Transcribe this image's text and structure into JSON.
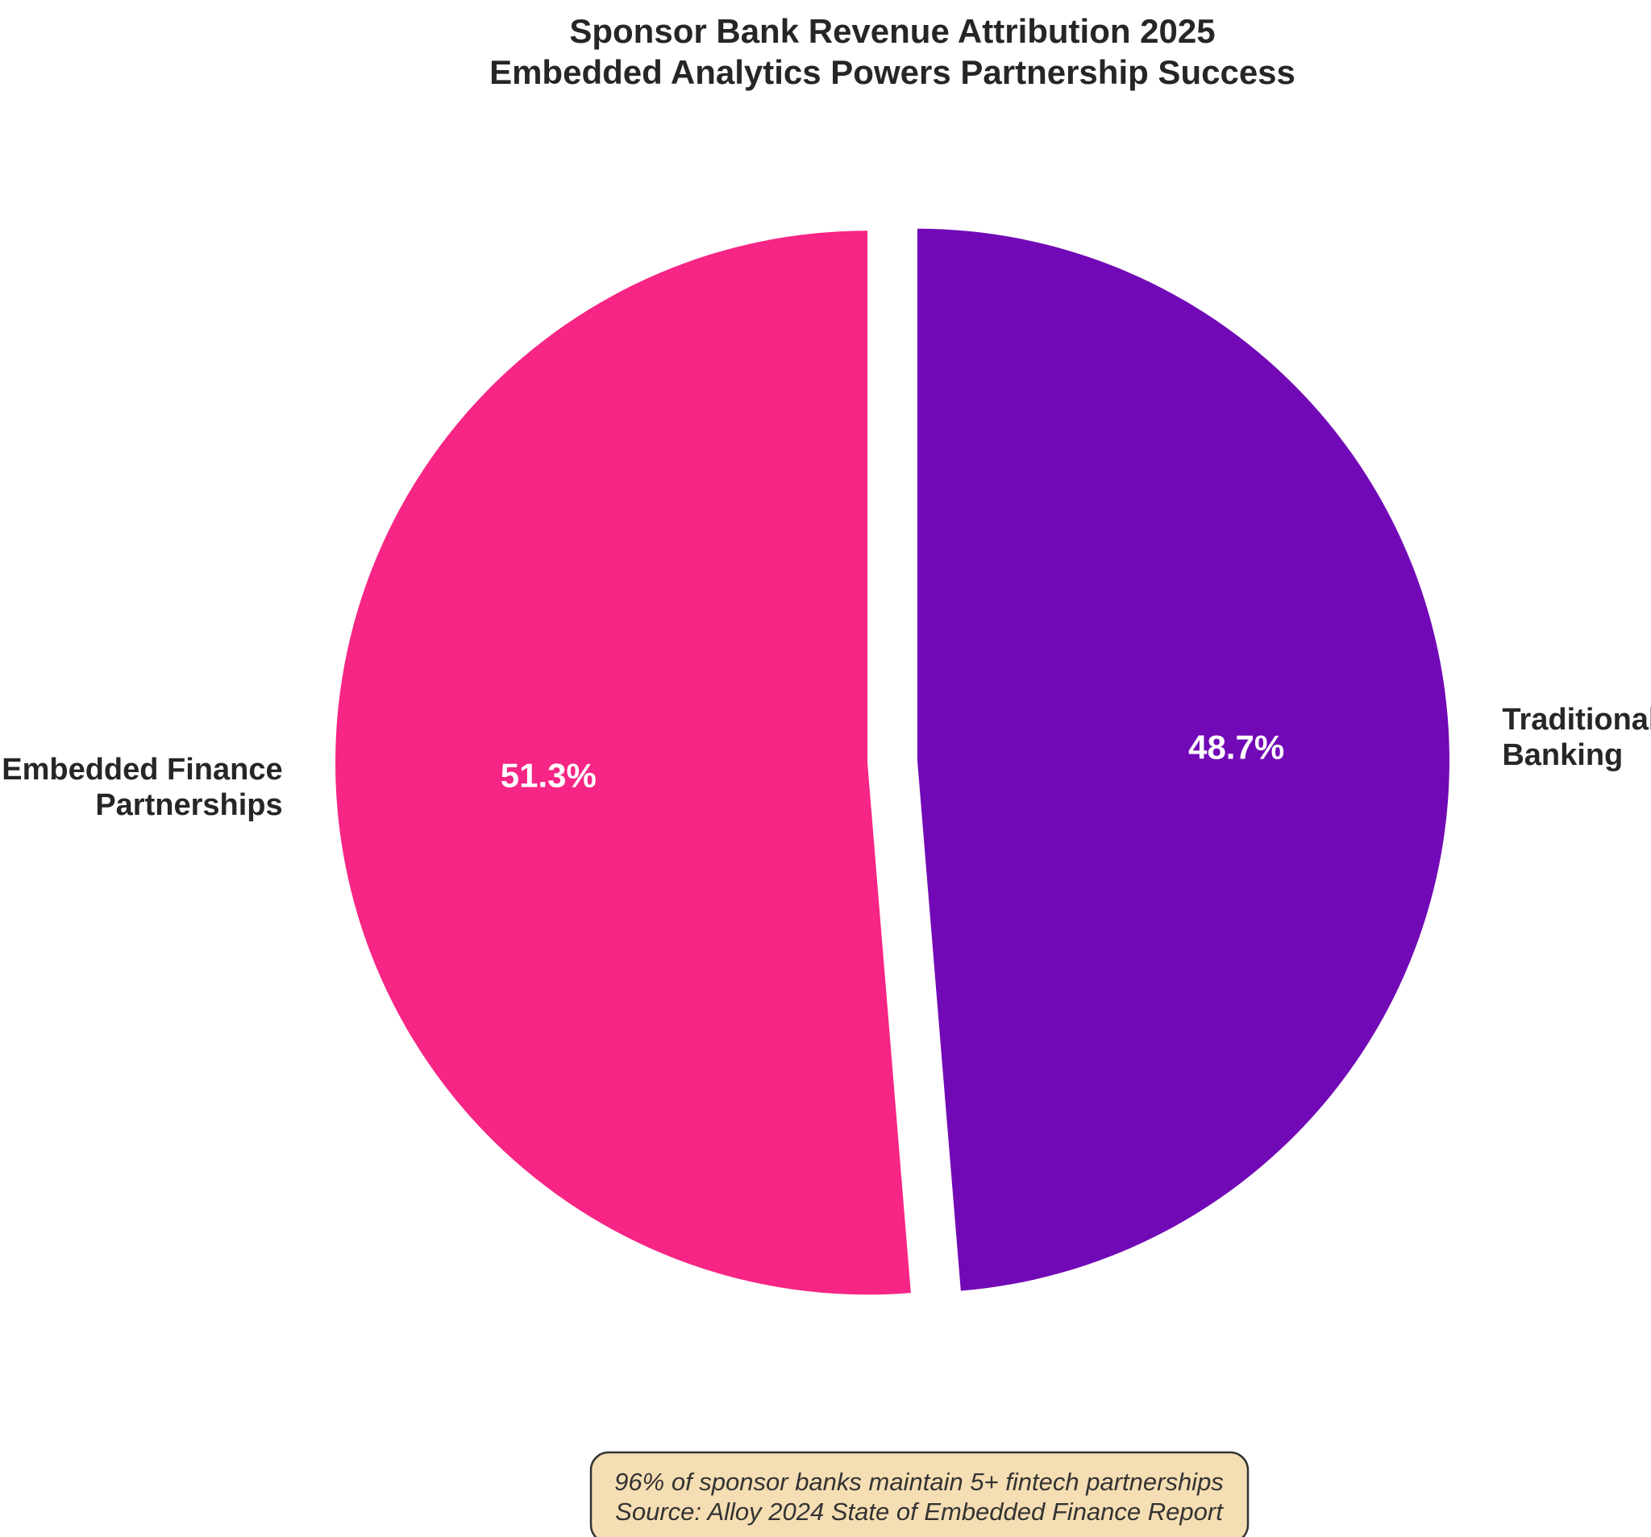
{
  "chart_data": {
    "type": "pie",
    "title": "Sponsor Bank Revenue Attribution 2025",
    "subtitle": "Embedded Analytics Powers Partnership Success",
    "start_angle_deg": 90,
    "direction": "counterclockwise",
    "slices": [
      {
        "label_lines": [
          "Embedded Finance",
          "Partnerships"
        ],
        "value": 51.3,
        "pct_label": "51.3%",
        "color": "#f72585",
        "exploded": true
      },
      {
        "label_lines": [
          "Traditional",
          "Banking"
        ],
        "value": 48.7,
        "pct_label": "48.7%",
        "color": "#7209b7",
        "exploded": true
      }
    ]
  },
  "annotation": {
    "lines": [
      "96% of sponsor banks maintain 5+ fintech partnerships",
      "Source: Alloy 2024 State of Embedded Finance Report"
    ],
    "background_color": "#f5deb3",
    "border_color": "#333333"
  }
}
